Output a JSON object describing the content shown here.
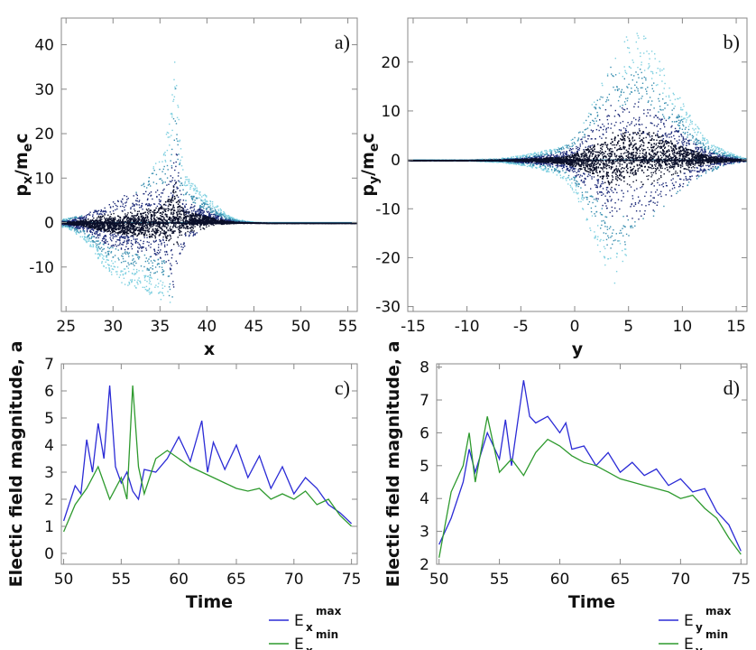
{
  "colors": {
    "dark": "#0a0f2a",
    "navy": "#1c2a78",
    "teal": "#3a8fb0",
    "cyan": "#7fd0e0",
    "blue_line": "#2b2bd6",
    "green_line": "#2e9a2e",
    "axis": "#888888"
  },
  "chart_data": [
    {
      "id": "a",
      "type": "scatter",
      "panel_tag": "a)",
      "xlabel": "x",
      "ylabel_main": "p",
      "ylabel_sub": "x",
      "ylabel_tail": "/m",
      "ylabel_sub2": "e",
      "ylabel_end": "c",
      "xlim": [
        24.5,
        56
      ],
      "ylim": [
        -20,
        46
      ],
      "xticks": [
        25,
        30,
        35,
        40,
        45,
        50,
        55
      ],
      "yticks": [
        -10,
        0,
        10,
        20,
        30,
        40
      ],
      "envelope": {
        "x": [
          25,
          27,
          29,
          31,
          33,
          34,
          35,
          35.8,
          36.3,
          36.6,
          37.0,
          37.5,
          38,
          39,
          40,
          41,
          42,
          43,
          44,
          45,
          46,
          47,
          48,
          56
        ],
        "upper": [
          1,
          2,
          4,
          6,
          9,
          12,
          15,
          22,
          30,
          45,
          20,
          12,
          10,
          8,
          6,
          4,
          2,
          1,
          0.5,
          0.2,
          0.1,
          0,
          0,
          0
        ],
        "lower": [
          -1,
          -4,
          -10,
          -14,
          -15,
          -17,
          -18,
          -19,
          -17,
          -12,
          -8,
          -6,
          -4,
          -2,
          -1,
          -0.5,
          -0.2,
          -0.1,
          0,
          0,
          0,
          0,
          0,
          0
        ]
      }
    },
    {
      "id": "b",
      "type": "scatter",
      "panel_tag": "b)",
      "xlabel": "y",
      "ylabel_main": "p",
      "ylabel_sub": "y",
      "ylabel_tail": "/m",
      "ylabel_sub2": "e",
      "ylabel_end": "c",
      "xlim": [
        -15.5,
        16
      ],
      "ylim": [
        -31,
        29
      ],
      "xticks": [
        -15,
        -10,
        -5,
        0,
        5,
        10,
        15
      ],
      "yticks": [
        -30,
        -20,
        -10,
        0,
        10,
        20
      ],
      "envelope": {
        "x": [
          -15.5,
          -10,
          -7,
          -5,
          -3,
          -1,
          0,
          1,
          2,
          3,
          3.5,
          4,
          5,
          6,
          7,
          8,
          9,
          10,
          11,
          12,
          13,
          14,
          15,
          16
        ],
        "upper": [
          0,
          0.1,
          0.4,
          1,
          2,
          3,
          5,
          9,
          14,
          18,
          20,
          23,
          26,
          27,
          24,
          20,
          16,
          12,
          8,
          5,
          3,
          2,
          1,
          0.4
        ],
        "lower": [
          0,
          -0.1,
          -0.4,
          -1,
          -2,
          -4,
          -7,
          -12,
          -18,
          -25,
          -30,
          -24,
          -18,
          -14,
          -12,
          -10,
          -8,
          -6,
          -4,
          -3,
          -2,
          -1,
          -0.5,
          -0.2
        ]
      }
    },
    {
      "id": "c",
      "type": "line",
      "panel_tag": "c)",
      "xlabel": "Time",
      "ylabel": "Electic field magnitude, a",
      "xlim": [
        49.8,
        75.5
      ],
      "ylim": [
        -0.4,
        7
      ],
      "xticks": [
        50,
        55,
        60,
        65,
        70,
        75
      ],
      "yticks": [
        0,
        1,
        2,
        3,
        4,
        5,
        6,
        7
      ],
      "series": [
        {
          "name": "E",
          "sub": "x",
          "sup": "max",
          "color": "#2b2bd6",
          "x": [
            50,
            51,
            51.5,
            52,
            52.5,
            53,
            53.5,
            54,
            54.5,
            55,
            55.5,
            56,
            56.5,
            57,
            58,
            59,
            60,
            61,
            62,
            62.5,
            63,
            64,
            65,
            66,
            67,
            68,
            69,
            70,
            71,
            72,
            73,
            74,
            75
          ],
          "y": [
            1.2,
            2.5,
            2.2,
            4.2,
            3.0,
            4.8,
            3.5,
            6.2,
            3.2,
            2.6,
            3.0,
            2.3,
            2.0,
            3.1,
            3.0,
            3.5,
            4.3,
            3.4,
            4.9,
            3.0,
            4.1,
            3.1,
            4.0,
            2.8,
            3.6,
            2.4,
            3.2,
            2.2,
            2.8,
            2.4,
            1.8,
            1.5,
            1.1
          ]
        },
        {
          "name": "E",
          "sub": "x",
          "sup": "min",
          "color": "#2e9a2e",
          "x": [
            50,
            51,
            52,
            53,
            54,
            55,
            55.5,
            56,
            56.5,
            57,
            58,
            59,
            60,
            61,
            62,
            63,
            64,
            65,
            66,
            67,
            68,
            69,
            70,
            71,
            72,
            73,
            74,
            75
          ],
          "y": [
            0.8,
            1.8,
            2.4,
            3.2,
            2.0,
            2.8,
            2.0,
            6.2,
            3.2,
            2.2,
            3.5,
            3.8,
            3.5,
            3.2,
            3.0,
            2.8,
            2.6,
            2.4,
            2.3,
            2.4,
            2.0,
            2.2,
            2.0,
            2.3,
            1.8,
            2.0,
            1.4,
            1.0
          ]
        }
      ]
    },
    {
      "id": "d",
      "type": "line",
      "panel_tag": "d)",
      "xlabel": "Time",
      "ylabel": "Electic field magnitude, a",
      "xlim": [
        49.8,
        75.5
      ],
      "ylim": [
        2,
        8.1
      ],
      "xticks": [
        50,
        55,
        60,
        65,
        70,
        75
      ],
      "yticks": [
        2,
        3,
        4,
        5,
        6,
        7,
        8
      ],
      "series": [
        {
          "name": "E",
          "sub": "y",
          "sup": "max",
          "color": "#2b2bd6",
          "x": [
            50,
            51,
            52,
            52.5,
            53,
            54,
            55,
            55.5,
            56,
            57,
            57.5,
            58,
            59,
            60,
            60.5,
            61,
            62,
            63,
            64,
            65,
            66,
            67,
            68,
            69,
            70,
            71,
            72,
            73,
            74,
            75
          ],
          "y": [
            2.6,
            3.4,
            4.5,
            5.5,
            4.8,
            6.0,
            5.2,
            6.4,
            5.0,
            7.6,
            6.5,
            6.3,
            6.5,
            6.0,
            6.3,
            5.5,
            5.6,
            5.0,
            5.4,
            4.8,
            5.1,
            4.7,
            4.9,
            4.4,
            4.6,
            4.2,
            4.3,
            3.6,
            3.2,
            2.4
          ]
        },
        {
          "name": "E",
          "sub": "y",
          "sup": "min",
          "color": "#2e9a2e",
          "x": [
            50,
            51,
            52,
            52.5,
            53,
            54,
            55,
            56,
            57,
            58,
            59,
            60,
            61,
            62,
            63,
            64,
            65,
            66,
            67,
            68,
            69,
            70,
            71,
            72,
            73,
            74,
            75
          ],
          "y": [
            2.2,
            4.2,
            5.0,
            6.0,
            4.5,
            6.5,
            4.8,
            5.2,
            4.7,
            5.4,
            5.8,
            5.6,
            5.3,
            5.1,
            5.0,
            4.8,
            4.6,
            4.5,
            4.4,
            4.3,
            4.2,
            4.0,
            4.1,
            3.7,
            3.4,
            2.8,
            2.3
          ]
        }
      ]
    }
  ]
}
